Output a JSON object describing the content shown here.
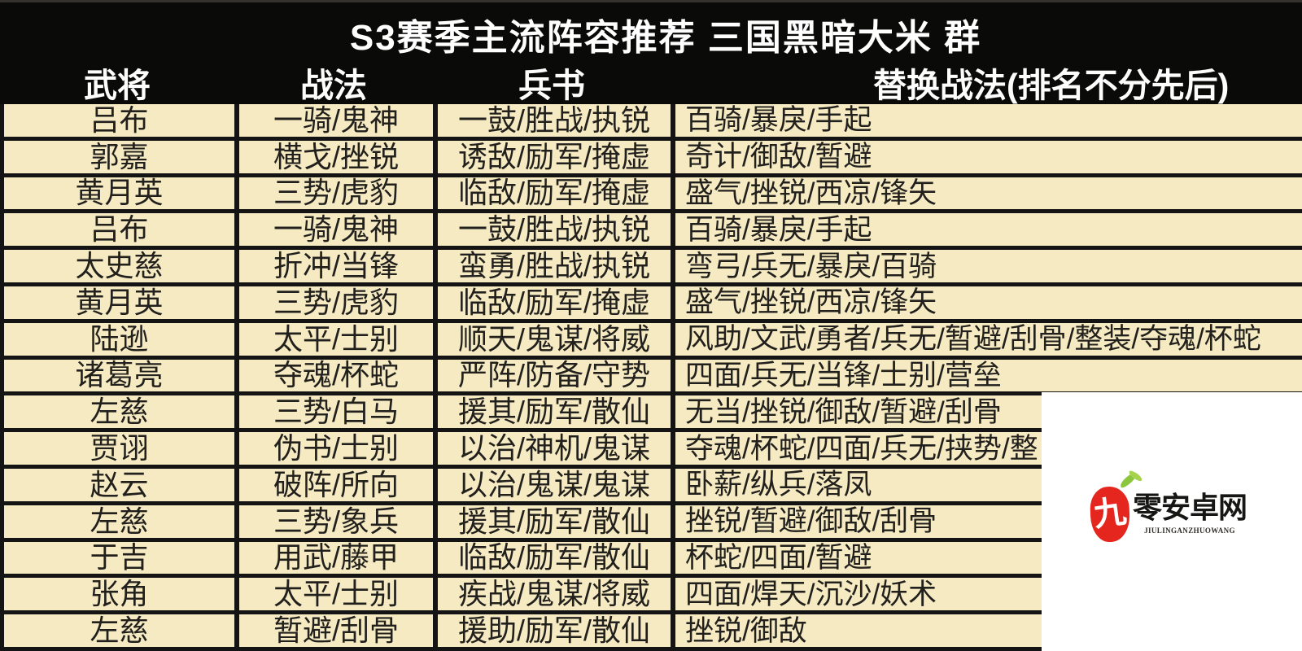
{
  "title": "S3赛季主流阵容推荐 三国黑暗大米 群",
  "table": {
    "columns": [
      "武将",
      "战法",
      "兵书",
      "替换战法(排名不分先后)"
    ],
    "rows": [
      {
        "general": "吕布",
        "tactics": "一骑/鬼神",
        "books": "一鼓/胜战/执锐",
        "alternatives": "百骑/暴戾/手起"
      },
      {
        "general": "郭嘉",
        "tactics": "横戈/挫锐",
        "books": "诱敌/励军/掩虚",
        "alternatives": "奇计/御敌/暂避"
      },
      {
        "general": "黄月英",
        "tactics": "三势/虎豹",
        "books": "临敌/励军/掩虚",
        "alternatives": "盛气/挫锐/西凉/锋矢"
      },
      {
        "general": "吕布",
        "tactics": "一骑/鬼神",
        "books": "一鼓/胜战/执锐",
        "alternatives": "百骑/暴戾/手起"
      },
      {
        "general": "太史慈",
        "tactics": "折冲/当锋",
        "books": "蛮勇/胜战/执锐",
        "alternatives": "弯弓/兵无/暴戾/百骑"
      },
      {
        "general": "黄月英",
        "tactics": "三势/虎豹",
        "books": "临敌/励军/掩虚",
        "alternatives": "盛气/挫锐/西凉/锋矢"
      },
      {
        "general": "陆逊",
        "tactics": "太平/士别",
        "books": "顺天/鬼谋/将威",
        "alternatives": "风助/文武/勇者/兵无/暂避/刮骨/整装/夺魂/杯蛇"
      },
      {
        "general": "诸葛亮",
        "tactics": "夺魂/杯蛇",
        "books": "严阵/防备/守势",
        "alternatives": "四面/兵无/当锋/士别/营垒"
      },
      {
        "general": "左慈",
        "tactics": "三势/白马",
        "books": "援其/励军/散仙",
        "alternatives": "无当/挫锐/御敌/暂避/刮骨"
      },
      {
        "general": "贾诩",
        "tactics": "伪书/士别",
        "books": "以治/神机/鬼谋",
        "alternatives": "夺魂/杯蛇/四面/兵无/挟势/整"
      },
      {
        "general": "赵云",
        "tactics": "破阵/所向",
        "books": "以治/鬼谋/鬼谋",
        "alternatives": "卧薪/纵兵/落凤"
      },
      {
        "general": "左慈",
        "tactics": "三势/象兵",
        "books": "援其/励军/散仙",
        "alternatives": "挫锐/暂避/御敌/刮骨"
      },
      {
        "general": "于吉",
        "tactics": "用武/藤甲",
        "books": "临敌/励军/散仙",
        "alternatives": "杯蛇/四面/暂避"
      },
      {
        "general": "张角",
        "tactics": "太平/士别",
        "books": "疾战/鬼谋/将威",
        "alternatives": "四面/焊天/沉沙/妖术"
      },
      {
        "general": "左慈",
        "tactics": "暂避/刮骨",
        "books": "援助/励军/散仙",
        "alternatives": "挫锐/御敌"
      }
    ]
  },
  "watermark": {
    "seal_char": "九",
    "site_name": "零安卓网",
    "site_latin": "JIULINGANZHUOWANG"
  },
  "colors": {
    "header_background": "#0a0a08",
    "row_background": "#f6eac3",
    "grid_border": "#141414",
    "cell_text": "#21201d",
    "header_text": "#ffffff",
    "watermark_box": "#ffffff",
    "seal_red": "#e5261f",
    "leaf_green": "#8cc63e"
  }
}
